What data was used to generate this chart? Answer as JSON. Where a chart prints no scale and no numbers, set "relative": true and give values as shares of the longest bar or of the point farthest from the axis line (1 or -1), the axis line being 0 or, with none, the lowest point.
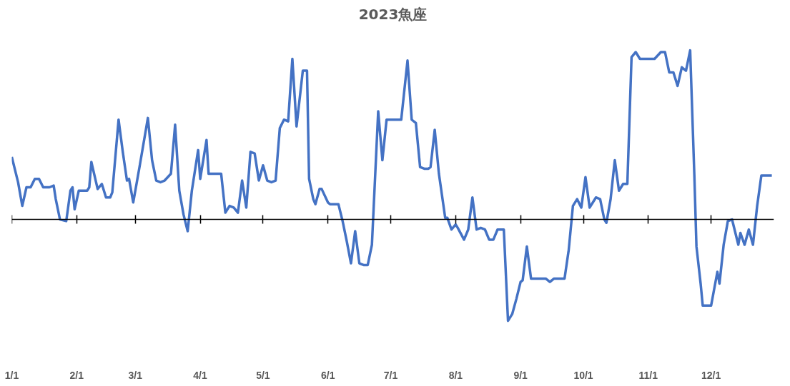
{
  "chart_data": {
    "type": "line",
    "title": "2023魚座",
    "relative": true,
    "x": [
      "2023-01-01",
      "2023-01-04",
      "2023-01-06",
      "2023-01-08",
      "2023-01-10",
      "2023-01-12",
      "2023-01-14",
      "2023-01-16",
      "2023-01-19",
      "2023-01-21",
      "2023-01-22",
      "2023-01-24",
      "2023-01-27",
      "2023-01-29",
      "2023-01-30",
      "2023-01-31",
      "2023-02-02",
      "2023-02-06",
      "2023-02-07",
      "2023-02-08",
      "2023-02-11",
      "2023-02-13",
      "2023-02-15",
      "2023-02-17",
      "2023-02-18",
      "2023-02-21",
      "2023-02-23",
      "2023-02-25",
      "2023-02-26",
      "2023-02-28",
      "2023-03-03",
      "2023-03-07",
      "2023-03-09",
      "2023-03-11",
      "2023-03-13",
      "2023-03-15",
      "2023-03-18",
      "2023-03-20",
      "2023-03-22",
      "2023-03-24",
      "2023-03-26",
      "2023-03-28",
      "2023-03-31",
      "2023-04-01",
      "2023-04-04",
      "2023-04-05",
      "2023-04-08",
      "2023-04-11",
      "2023-04-13",
      "2023-04-15",
      "2023-04-17",
      "2023-04-19",
      "2023-04-21",
      "2023-04-23",
      "2023-04-25",
      "2023-04-27",
      "2023-04-29",
      "2023-05-01",
      "2023-05-03",
      "2023-05-05",
      "2023-05-07",
      "2023-05-09",
      "2023-05-11",
      "2023-05-13",
      "2023-05-15",
      "2023-05-17",
      "2023-05-20",
      "2023-05-22",
      "2023-05-23",
      "2023-05-25",
      "2023-05-26",
      "2023-05-28",
      "2023-05-29",
      "2023-06-01",
      "2023-06-02",
      "2023-06-04",
      "2023-06-06",
      "2023-06-08",
      "2023-06-10",
      "2023-06-12",
      "2023-06-14",
      "2023-06-16",
      "2023-06-18",
      "2023-06-20",
      "2023-06-22",
      "2023-06-25",
      "2023-06-27",
      "2023-06-29",
      "2023-07-01",
      "2023-07-04",
      "2023-07-06",
      "2023-07-09",
      "2023-07-11",
      "2023-07-13",
      "2023-07-15",
      "2023-07-17",
      "2023-07-19",
      "2023-07-20",
      "2023-07-22",
      "2023-07-24",
      "2023-07-27",
      "2023-07-28",
      "2023-07-30",
      "2023-08-01",
      "2023-08-02",
      "2023-08-05",
      "2023-08-07",
      "2023-08-09",
      "2023-08-11",
      "2023-08-13",
      "2023-08-15",
      "2023-08-17",
      "2023-08-19",
      "2023-08-21",
      "2023-08-24",
      "2023-08-26",
      "2023-08-28",
      "2023-08-30",
      "2023-09-01",
      "2023-09-02",
      "2023-09-04",
      "2023-09-06",
      "2023-09-08",
      "2023-09-11",
      "2023-09-13",
      "2023-09-15",
      "2023-09-17",
      "2023-09-20",
      "2023-09-22",
      "2023-09-24",
      "2023-09-26",
      "2023-09-28",
      "2023-09-30",
      "2023-10-02",
      "2023-10-04",
      "2023-10-07",
      "2023-10-09",
      "2023-10-11",
      "2023-10-12",
      "2023-10-14",
      "2023-10-16",
      "2023-10-18",
      "2023-10-20",
      "2023-10-22",
      "2023-10-24",
      "2023-10-26",
      "2023-10-28",
      "2023-11-01",
      "2023-11-04",
      "2023-11-07",
      "2023-11-09",
      "2023-11-11",
      "2023-11-13",
      "2023-11-15",
      "2023-11-17",
      "2023-11-19",
      "2023-11-21",
      "2023-11-23",
      "2023-11-24",
      "2023-11-26",
      "2023-11-27",
      "2023-11-29",
      "2023-12-01",
      "2023-12-04",
      "2023-12-05",
      "2023-12-07",
      "2023-12-09",
      "2023-12-11",
      "2023-12-14",
      "2023-12-15",
      "2023-12-17",
      "2023-12-19",
      "2023-12-21",
      "2023-12-23",
      "2023-12-25",
      "2023-12-27",
      "2023-12-30"
    ],
    "series": [
      {
        "color": "#4472c4",
        "values": [
          0.37,
          0.22,
          0.08,
          0.19,
          0.19,
          0.24,
          0.24,
          0.19,
          0.19,
          0.2,
          0.12,
          0.0,
          -0.01,
          0.17,
          0.19,
          0.06,
          0.17,
          0.17,
          0.19,
          0.34,
          0.18,
          0.21,
          0.13,
          0.13,
          0.16,
          0.59,
          0.4,
          0.23,
          0.24,
          0.1,
          0.31,
          0.6,
          0.35,
          0.23,
          0.22,
          0.23,
          0.27,
          0.56,
          0.17,
          0.03,
          -0.07,
          0.17,
          0.41,
          0.24,
          0.47,
          0.27,
          0.27,
          0.27,
          0.04,
          0.08,
          0.07,
          0.04,
          0.23,
          0.07,
          0.4,
          0.39,
          0.23,
          0.32,
          0.23,
          0.22,
          0.23,
          0.54,
          0.59,
          0.58,
          0.95,
          0.55,
          0.88,
          0.88,
          0.24,
          0.12,
          0.09,
          0.18,
          0.18,
          0.1,
          0.09,
          0.09,
          0.09,
          -0.01,
          -0.13,
          -0.26,
          -0.07,
          -0.26,
          -0.27,
          -0.27,
          -0.15,
          0.64,
          0.35,
          0.59,
          0.59,
          0.59,
          0.59,
          0.94,
          0.59,
          0.57,
          0.31,
          0.3,
          0.3,
          0.31,
          0.53,
          0.27,
          0.01,
          0.01,
          -0.06,
          -0.03,
          -0.05,
          -0.12,
          -0.06,
          0.13,
          -0.06,
          -0.05,
          -0.06,
          -0.12,
          -0.12,
          -0.06,
          -0.06,
          -0.6,
          -0.56,
          -0.47,
          -0.37,
          -0.36,
          -0.16,
          -0.35,
          -0.35,
          -0.35,
          -0.35,
          -0.37,
          -0.35,
          -0.35,
          -0.35,
          -0.18,
          0.08,
          0.12,
          0.07,
          0.25,
          0.07,
          0.13,
          0.12,
          0.0,
          -0.02,
          0.12,
          0.35,
          0.17,
          0.21,
          0.21,
          0.96,
          0.99,
          0.95,
          0.95,
          0.95,
          0.99,
          0.99,
          0.87,
          0.87,
          0.79,
          0.9,
          0.88,
          1.0,
          0.26,
          -0.16,
          -0.38,
          -0.51,
          -0.51,
          -0.51,
          -0.31,
          -0.38,
          -0.15,
          -0.01,
          0.0,
          -0.15,
          -0.08,
          -0.15,
          -0.06,
          -0.15,
          0.08,
          0.26,
          0.26,
          0.26
        ]
      }
    ],
    "xlim": [
      "2023-01-01",
      "2023-12-31"
    ],
    "xticks": [
      {
        "value": "2023-01-01",
        "label": "1/1"
      },
      {
        "value": "2023-02-01",
        "label": "2/1"
      },
      {
        "value": "2023-03-01",
        "label": "3/1"
      },
      {
        "value": "2023-04-01",
        "label": "4/1"
      },
      {
        "value": "2023-05-01",
        "label": "5/1"
      },
      {
        "value": "2023-06-01",
        "label": "6/1"
      },
      {
        "value": "2023-07-01",
        "label": "7/1"
      },
      {
        "value": "2023-08-01",
        "label": "8/1"
      },
      {
        "value": "2023-09-01",
        "label": "9/1"
      },
      {
        "value": "2023-10-01",
        "label": "10/1"
      },
      {
        "value": "2023-11-01",
        "label": "11/1"
      },
      {
        "value": "2023-12-01",
        "label": "12/1"
      }
    ],
    "marker": "none",
    "line_style": "solid"
  }
}
